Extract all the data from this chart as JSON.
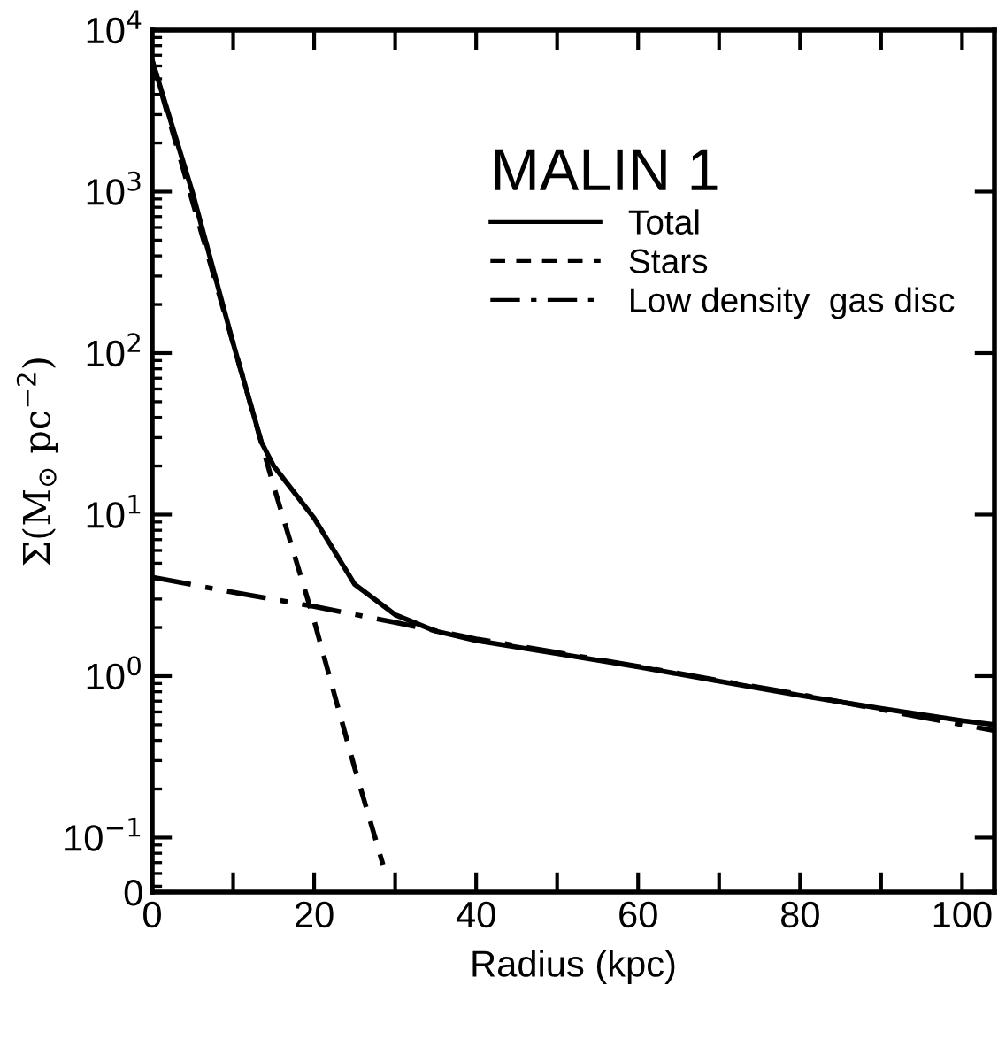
{
  "chart_data": {
    "type": "line",
    "xlabel": "Radius (kpc)",
    "ylabel": "Σ(M$_{⊙}$ pc$^{−2}$)",
    "legend_title": "MALIN 1",
    "log": "y",
    "legend": "top right",
    "grid": false,
    "xlim": [
      0,
      104
    ],
    "ylim": [
      0.046,
      10000
    ],
    "xticks": [
      0,
      {
        "value": 10,
        "label": null
      },
      20,
      {
        "value": 30,
        "label": null
      },
      40,
      {
        "value": 50,
        "label": null
      },
      60,
      {
        "value": 70,
        "label": null
      },
      80,
      {
        "value": 90,
        "label": null
      },
      100
    ],
    "yticks": [
      {
        "value": 0.046,
        "label": "0"
      },
      {
        "value": 0.1,
        "label": "10$^{−1}$"
      },
      {
        "value": 1,
        "label": "10$^{0}$"
      },
      {
        "value": 10,
        "label": "10$^{1}$"
      },
      {
        "value": 100,
        "label": "10$^{2}$"
      },
      {
        "value": 1000,
        "label": "10$^{3}$"
      },
      {
        "value": 10000,
        "label": "10$^{4}$"
      }
    ],
    "series": [
      {
        "name": "Total",
        "color": "#000000",
        "line_style": "solid",
        "x": [
          0,
          5,
          10,
          13.5,
          15,
          20,
          25,
          30,
          35,
          40,
          50,
          60,
          70,
          80,
          90,
          100,
          104
        ],
        "values": [
          6500,
          980,
          115,
          28,
          20,
          9.5,
          3.7,
          2.4,
          1.9,
          1.66,
          1.38,
          1.14,
          0.93,
          0.76,
          0.63,
          0.53,
          0.5
        ]
      },
      {
        "name": "Stars",
        "color": "#000000",
        "line_style": "dashed",
        "x": [
          0,
          5,
          10,
          15,
          20,
          25,
          28.5
        ],
        "values": [
          6500,
          860,
          115,
          15,
          2.2,
          0.27,
          0.068
        ]
      },
      {
        "name": "Low density  gas disc",
        "color": "#000000",
        "line_style": "dashdot",
        "x": [
          0,
          10,
          20,
          30,
          40,
          50,
          60,
          70,
          80,
          90,
          100,
          104
        ],
        "values": [
          4.1,
          3.3,
          2.7,
          2.15,
          1.7,
          1.4,
          1.15,
          0.94,
          0.77,
          0.62,
          0.5,
          0.46
        ]
      }
    ]
  }
}
